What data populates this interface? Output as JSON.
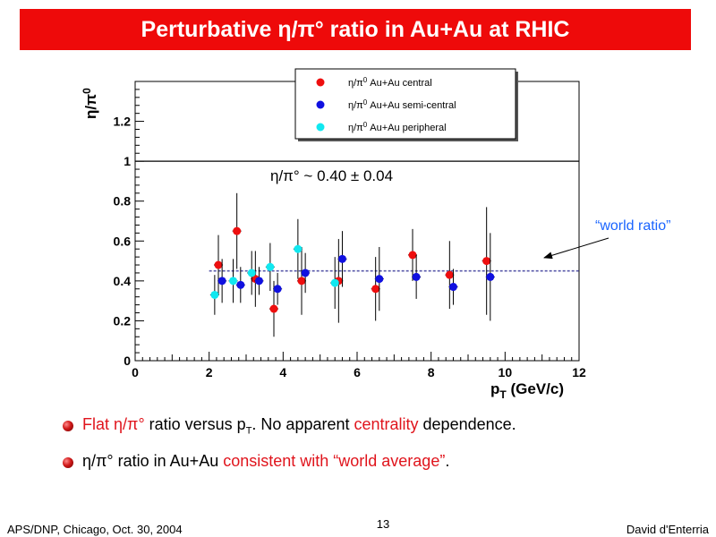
{
  "title": "Perturbative η/π° ratio in Au+Au at RHIC",
  "chart_data": {
    "type": "scatter",
    "ylabel_main": "η/π",
    "ylabel_sup": "0",
    "xlabel_main": "p",
    "xlabel_sub": "T",
    "xlabel_rest": " (GeV/c)",
    "xlim": [
      0,
      12
    ],
    "ylim": [
      0,
      1.4
    ],
    "x_ticks": [
      0,
      2,
      4,
      6,
      8,
      10,
      12
    ],
    "y_ticks": [
      0,
      0.2,
      0.4,
      0.6,
      0.8,
      1,
      1.2
    ],
    "y_tick_labels": [
      "0",
      "0.2",
      "0.4",
      "0.6",
      "0.8",
      "1",
      "1.2"
    ],
    "reference_line_y": 1.0,
    "fit_line": {
      "y": 0.45,
      "x_range": [
        2,
        12
      ],
      "color": "#5a5aaa"
    },
    "fit_annotation": "η/π° ~ 0.40 ± 0.04",
    "world_ratio_label": "“world ratio”",
    "series": [
      {
        "name": "Au+Au central",
        "color": "#ee0e0e",
        "points": [
          {
            "x": 2.25,
            "y": 0.48,
            "err": 0.15
          },
          {
            "x": 2.75,
            "y": 0.65,
            "err": 0.19
          },
          {
            "x": 3.25,
            "y": 0.41,
            "err": 0.14
          },
          {
            "x": 3.75,
            "y": 0.26,
            "err": 0.14
          },
          {
            "x": 4.5,
            "y": 0.4,
            "err": 0.17
          },
          {
            "x": 5.5,
            "y": 0.4,
            "err": 0.21
          },
          {
            "x": 6.5,
            "y": 0.36,
            "err": 0.16
          },
          {
            "x": 7.5,
            "y": 0.53,
            "err": 0.13
          },
          {
            "x": 8.5,
            "y": 0.43,
            "err": 0.17
          },
          {
            "x": 9.5,
            "y": 0.5,
            "err": 0.27
          }
        ]
      },
      {
        "name": "Au+Au semi-central",
        "color": "#1010e0",
        "points": [
          {
            "x": 2.35,
            "y": 0.4,
            "err": 0.11
          },
          {
            "x": 2.85,
            "y": 0.38,
            "err": 0.09
          },
          {
            "x": 3.35,
            "y": 0.4,
            "err": 0.07
          },
          {
            "x": 3.85,
            "y": 0.36,
            "err": 0.08
          },
          {
            "x": 4.6,
            "y": 0.44,
            "err": 0.1
          },
          {
            "x": 5.6,
            "y": 0.51,
            "err": 0.14
          },
          {
            "x": 6.6,
            "y": 0.41,
            "err": 0.16
          },
          {
            "x": 7.6,
            "y": 0.42,
            "err": 0.11
          },
          {
            "x": 8.6,
            "y": 0.37,
            "err": 0.09
          },
          {
            "x": 9.6,
            "y": 0.42,
            "err": 0.22
          }
        ]
      },
      {
        "name": "Au+Au peripheral",
        "color": "#10e8f0",
        "points": [
          {
            "x": 2.15,
            "y": 0.33,
            "err": 0.1
          },
          {
            "x": 2.65,
            "y": 0.4,
            "err": 0.11
          },
          {
            "x": 3.15,
            "y": 0.44,
            "err": 0.11
          },
          {
            "x": 3.65,
            "y": 0.47,
            "err": 0.12
          },
          {
            "x": 4.4,
            "y": 0.56,
            "err": 0.15
          },
          {
            "x": 5.4,
            "y": 0.39,
            "err": 0.13
          }
        ]
      }
    ],
    "legend": {
      "placement": "top-right",
      "prefix": "η/π",
      "sup": "0",
      "entries": [
        "Au+Au central",
        "Au+Au semi-central",
        "Au+Au peripheral"
      ]
    }
  },
  "bullets": [
    {
      "pre": "Flat η/π° ",
      "plain1": "ratio versus p",
      "sub": "T",
      "plain2": ". No apparent ",
      "hl": "centrality",
      "post": " dependence."
    },
    {
      "plain1": "η/π° ratio in Au+Au ",
      "hl": "consistent with “world average”",
      "post": "."
    }
  ],
  "footer": {
    "left": "APS/DNP, Chicago, Oct. 30, 2004",
    "page": "13",
    "right": "David d'Enterria"
  }
}
